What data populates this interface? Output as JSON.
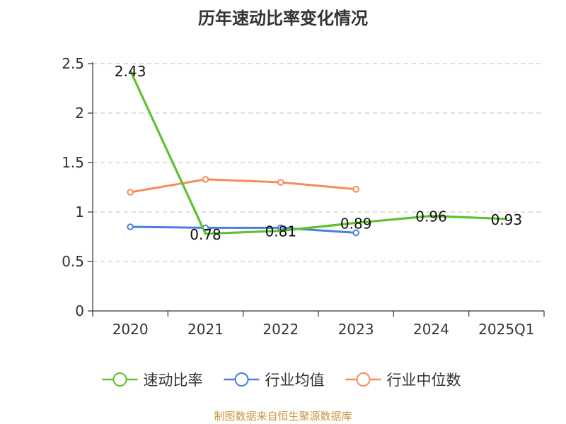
{
  "chart_data": {
    "type": "line",
    "title": "历年速动比率变化情况",
    "xlabel": "",
    "ylabel": "",
    "categories": [
      "2020",
      "2021",
      "2022",
      "2023",
      "2024",
      "2025Q1"
    ],
    "ylim": [
      0,
      2.5
    ],
    "yticks": [
      0,
      0.5,
      1,
      1.5,
      2,
      2.5
    ],
    "ytick_labels": [
      "0",
      "0.5",
      "1",
      "1.5",
      "2",
      "2.5"
    ],
    "grid": true,
    "legend_position": "bottom",
    "series": [
      {
        "name": "速动比率",
        "color": "#5ec12f",
        "values": [
          2.43,
          0.78,
          0.81,
          0.89,
          0.96,
          0.93
        ],
        "data_labels": [
          "2.43",
          "0.78",
          "0.81",
          "0.89",
          "0.96",
          "0.93"
        ],
        "markers": false
      },
      {
        "name": "行业均值",
        "color": "#4a7fdc",
        "values": [
          0.85,
          0.84,
          0.84,
          0.79,
          null,
          null
        ],
        "markers": true
      },
      {
        "name": "行业中位数",
        "color": "#f58c5a",
        "values": [
          1.2,
          1.33,
          1.3,
          1.23,
          null,
          null
        ],
        "markers": true
      }
    ]
  },
  "source_text": "制图数据来自恒生聚源数据库",
  "source_color": "#c8963c"
}
